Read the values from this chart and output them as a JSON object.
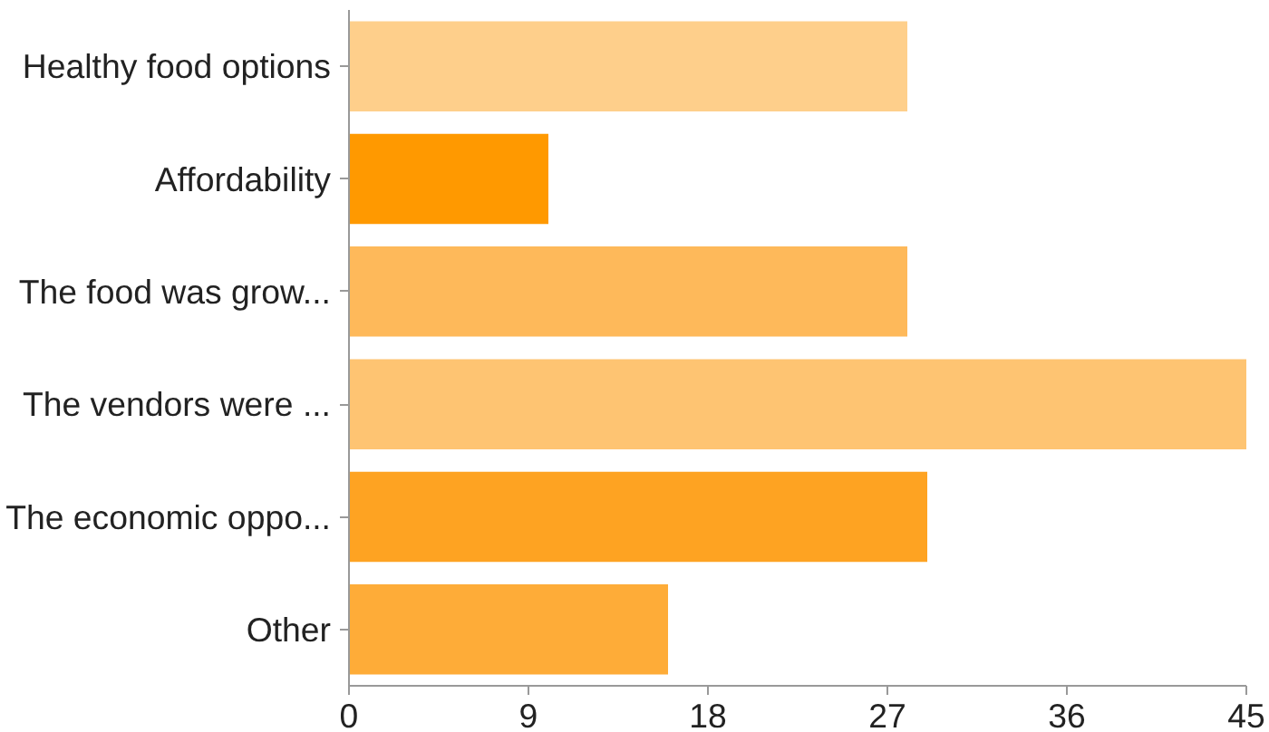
{
  "chart_data": {
    "type": "bar",
    "orientation": "horizontal",
    "categories": [
      "Healthy food options",
      "Affordability",
      "The food was grow...",
      "The vendors were ...",
      "The economic oppo...",
      "Other"
    ],
    "values": [
      28,
      10,
      28,
      45,
      29,
      16
    ],
    "colors": [
      "#fecf8b",
      "#ff9900",
      "#feb95a",
      "#fec472",
      "#fea322",
      "#feac38"
    ],
    "xlim": [
      0,
      45
    ],
    "xticks": [
      0,
      9,
      18,
      27,
      36,
      45
    ],
    "grid": false
  }
}
